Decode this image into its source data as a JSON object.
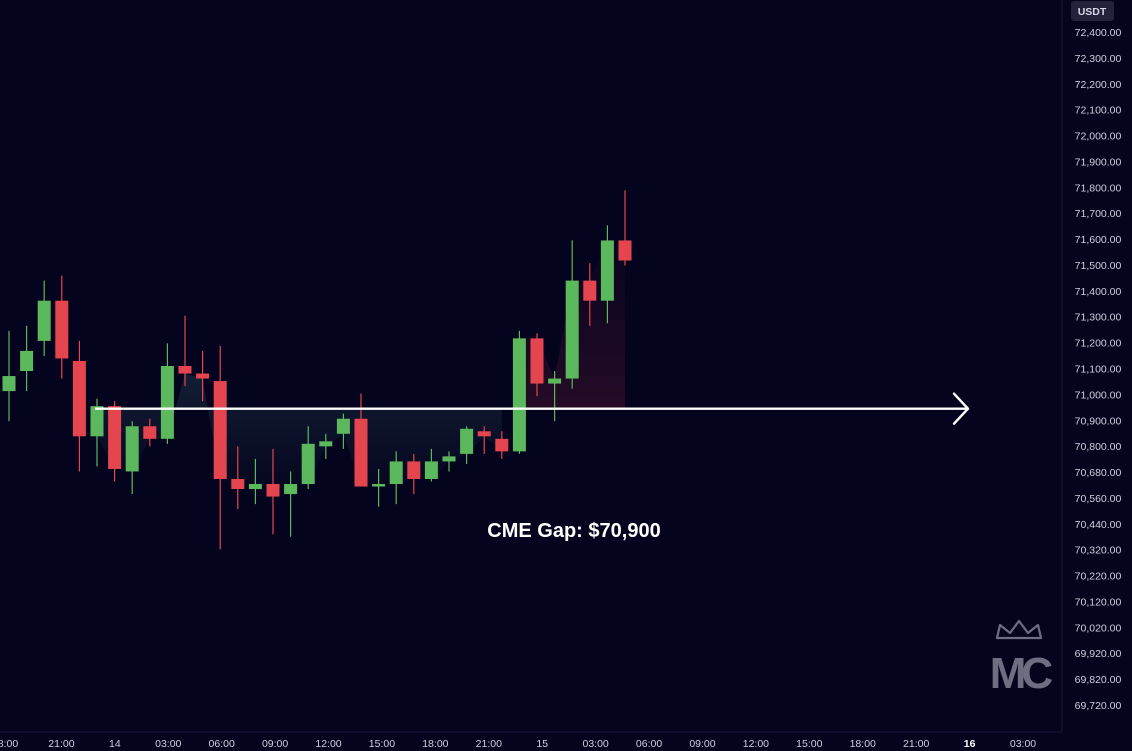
{
  "chart_data": {
    "type": "candlestick",
    "currency_label": "USDT",
    "annotation": "CME Gap: $70,900",
    "gap_level": 70900,
    "ylim": [
      69660,
      72460
    ],
    "y_ticks": [
      "72,400.00",
      "72,300.00",
      "72,200.00",
      "72,100.00",
      "72,000.00",
      "71,900.00",
      "71,800.00",
      "71,700.00",
      "71,600.00",
      "71,500.00",
      "71,400.00",
      "71,300.00",
      "71,200.00",
      "71,100.00",
      "71,000.00",
      "70,900.00",
      "70,800.00",
      "70,680.00",
      "70,560.00",
      "70,440.00",
      "70,320.00",
      "70,220.00",
      "70,120.00",
      "70,020.00",
      "69,920.00",
      "69,820.00",
      "69,720.00"
    ],
    "x_ticks": [
      "8:00",
      "21:00",
      "14",
      "03:00",
      "06:00",
      "09:00",
      "12:00",
      "15:00",
      "18:00",
      "21:00",
      "15",
      "03:00",
      "06:00",
      "09:00",
      "12:00",
      "15:00",
      "18:00",
      "21:00",
      "16",
      "03:00"
    ],
    "bold_x_ticks": [
      "16"
    ],
    "candles": [
      {
        "o": 70970,
        "h": 71210,
        "l": 70850,
        "c": 71030
      },
      {
        "o": 71050,
        "h": 71230,
        "l": 70970,
        "c": 71130
      },
      {
        "o": 71170,
        "h": 71410,
        "l": 71110,
        "c": 71330
      },
      {
        "o": 71330,
        "h": 71430,
        "l": 71020,
        "c": 71100
      },
      {
        "o": 71090,
        "h": 71170,
        "l": 70650,
        "c": 70790
      },
      {
        "o": 70790,
        "h": 70940,
        "l": 70670,
        "c": 70910
      },
      {
        "o": 70910,
        "h": 70930,
        "l": 70610,
        "c": 70660
      },
      {
        "o": 70650,
        "h": 70850,
        "l": 70560,
        "c": 70830
      },
      {
        "o": 70830,
        "h": 70860,
        "l": 70750,
        "c": 70780
      },
      {
        "o": 70780,
        "h": 71160,
        "l": 70760,
        "c": 71070
      },
      {
        "o": 71070,
        "h": 71270,
        "l": 70990,
        "c": 71040
      },
      {
        "o": 71040,
        "h": 71130,
        "l": 70930,
        "c": 71020
      },
      {
        "o": 71010,
        "h": 71150,
        "l": 70340,
        "c": 70620
      },
      {
        "o": 70620,
        "h": 70750,
        "l": 70500,
        "c": 70580
      },
      {
        "o": 70580,
        "h": 70700,
        "l": 70520,
        "c": 70600
      },
      {
        "o": 70600,
        "h": 70740,
        "l": 70400,
        "c": 70550
      },
      {
        "o": 70560,
        "h": 70650,
        "l": 70390,
        "c": 70600
      },
      {
        "o": 70600,
        "h": 70830,
        "l": 70580,
        "c": 70760
      },
      {
        "o": 70750,
        "h": 70800,
        "l": 70700,
        "c": 70770
      },
      {
        "o": 70800,
        "h": 70880,
        "l": 70740,
        "c": 70860
      },
      {
        "o": 70860,
        "h": 70960,
        "l": 70590,
        "c": 70590
      },
      {
        "o": 70590,
        "h": 70660,
        "l": 70510,
        "c": 70600
      },
      {
        "o": 70600,
        "h": 70730,
        "l": 70520,
        "c": 70690
      },
      {
        "o": 70690,
        "h": 70720,
        "l": 70560,
        "c": 70620
      },
      {
        "o": 70620,
        "h": 70740,
        "l": 70610,
        "c": 70690
      },
      {
        "o": 70690,
        "h": 70730,
        "l": 70650,
        "c": 70710
      },
      {
        "o": 70720,
        "h": 70830,
        "l": 70680,
        "c": 70820
      },
      {
        "o": 70810,
        "h": 70830,
        "l": 70720,
        "c": 70790
      },
      {
        "o": 70780,
        "h": 70810,
        "l": 70700,
        "c": 70730
      },
      {
        "o": 70730,
        "h": 71210,
        "l": 70720,
        "c": 71180
      },
      {
        "o": 71180,
        "h": 71200,
        "l": 70950,
        "c": 71000
      },
      {
        "o": 71000,
        "h": 71050,
        "l": 70850,
        "c": 71020
      },
      {
        "o": 71020,
        "h": 71570,
        "l": 70980,
        "c": 71410
      },
      {
        "o": 71410,
        "h": 71480,
        "l": 71230,
        "c": 71330
      },
      {
        "o": 71330,
        "h": 71630,
        "l": 71240,
        "c": 71570
      },
      {
        "o": 71570,
        "h": 71770,
        "l": 71470,
        "c": 71490
      }
    ]
  }
}
